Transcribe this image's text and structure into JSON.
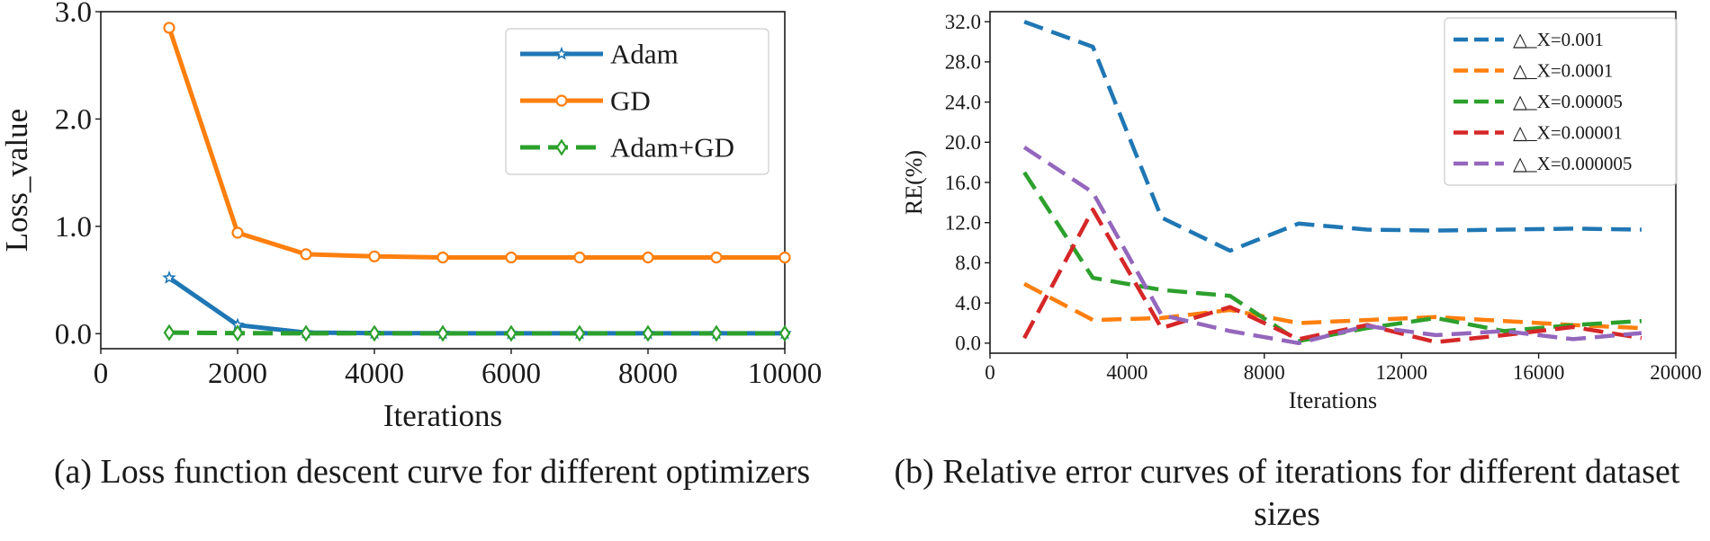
{
  "chart_data": [
    {
      "type": "line",
      "title": "",
      "xlabel": "Iterations",
      "ylabel": "Loss_value",
      "xlim": [
        0,
        10000
      ],
      "ylim": [
        -0.14,
        3.0
      ],
      "xticks": [
        0,
        2000,
        4000,
        6000,
        8000,
        10000
      ],
      "yticks": [
        0.0,
        1.0,
        2.0,
        3.0
      ],
      "ytick_labels": [
        "0.0",
        "1.0",
        "2.0",
        "3.0"
      ],
      "grid": false,
      "legend_position": "top-right",
      "x": [
        1000,
        2000,
        3000,
        4000,
        5000,
        6000,
        7000,
        8000,
        9000,
        10000
      ],
      "series": [
        {
          "name": "Adam",
          "color": "#1f77b4",
          "marker": "star",
          "linestyle": "solid",
          "values": [
            0.52,
            0.08,
            0.01,
            0.005,
            0.004,
            0.003,
            0.003,
            0.003,
            0.003,
            0.003
          ]
        },
        {
          "name": "GD",
          "color": "#ff7f0e",
          "marker": "circle",
          "linestyle": "solid",
          "values": [
            2.85,
            0.94,
            0.74,
            0.72,
            0.71,
            0.71,
            0.71,
            0.71,
            0.71,
            0.71
          ]
        },
        {
          "name": "Adam+GD",
          "color": "#2ca02c",
          "marker": "diamond",
          "linestyle": "dashed",
          "values": [
            0.01,
            0.005,
            0.003,
            0.003,
            0.002,
            0.002,
            0.002,
            0.002,
            0.002,
            0.002
          ]
        }
      ],
      "caption": "(a)  Loss function descent curve for different optimizers"
    },
    {
      "type": "line",
      "title": "",
      "xlabel": "Iterations",
      "ylabel": "RE(%)",
      "xlim": [
        0,
        20000
      ],
      "ylim": [
        -1.0,
        33.0
      ],
      "xticks": [
        0,
        4000,
        8000,
        12000,
        16000,
        20000
      ],
      "yticks": [
        0,
        4,
        8,
        12,
        16,
        20,
        24,
        28,
        32
      ],
      "ytick_labels": [
        "0.0",
        "4.0",
        "8.0",
        "12.0",
        "16.0",
        "20.0",
        "24.0",
        "28.0",
        "32.0"
      ],
      "grid": false,
      "legend_position": "top-right",
      "x": [
        1000,
        3000,
        5000,
        7000,
        9000,
        11000,
        13000,
        15000,
        17000,
        19000
      ],
      "series": [
        {
          "name": "△_X=0.001",
          "color": "#1f77b4",
          "linestyle": "dashed",
          "values": [
            32.0,
            29.5,
            12.5,
            9.2,
            11.9,
            11.3,
            11.2,
            11.3,
            11.4,
            11.3
          ]
        },
        {
          "name": "△_X=0.0001",
          "color": "#ff7f0e",
          "linestyle": "dashed",
          "values": [
            5.9,
            2.3,
            2.5,
            3.3,
            2.0,
            2.3,
            2.6,
            2.2,
            1.8,
            1.5
          ]
        },
        {
          "name": "△_X=0.00005",
          "color": "#2ca02c",
          "linestyle": "dashed",
          "values": [
            17.0,
            6.5,
            5.3,
            4.7,
            0.2,
            1.5,
            2.5,
            1.2,
            1.8,
            2.2
          ]
        },
        {
          "name": "△_X=0.00001",
          "color": "#d62728",
          "linestyle": "dashed",
          "values": [
            0.5,
            13.3,
            1.5,
            3.6,
            0.4,
            1.8,
            0.1,
            0.8,
            1.6,
            0.5
          ]
        },
        {
          "name": "△_X=0.000005",
          "color": "#9467bd",
          "linestyle": "dashed",
          "values": [
            19.5,
            15.0,
            2.8,
            1.2,
            0.0,
            1.7,
            0.8,
            1.2,
            0.4,
            1.0
          ]
        }
      ],
      "caption": "(b)  Relative error curves of iterations for different dataset sizes"
    }
  ]
}
